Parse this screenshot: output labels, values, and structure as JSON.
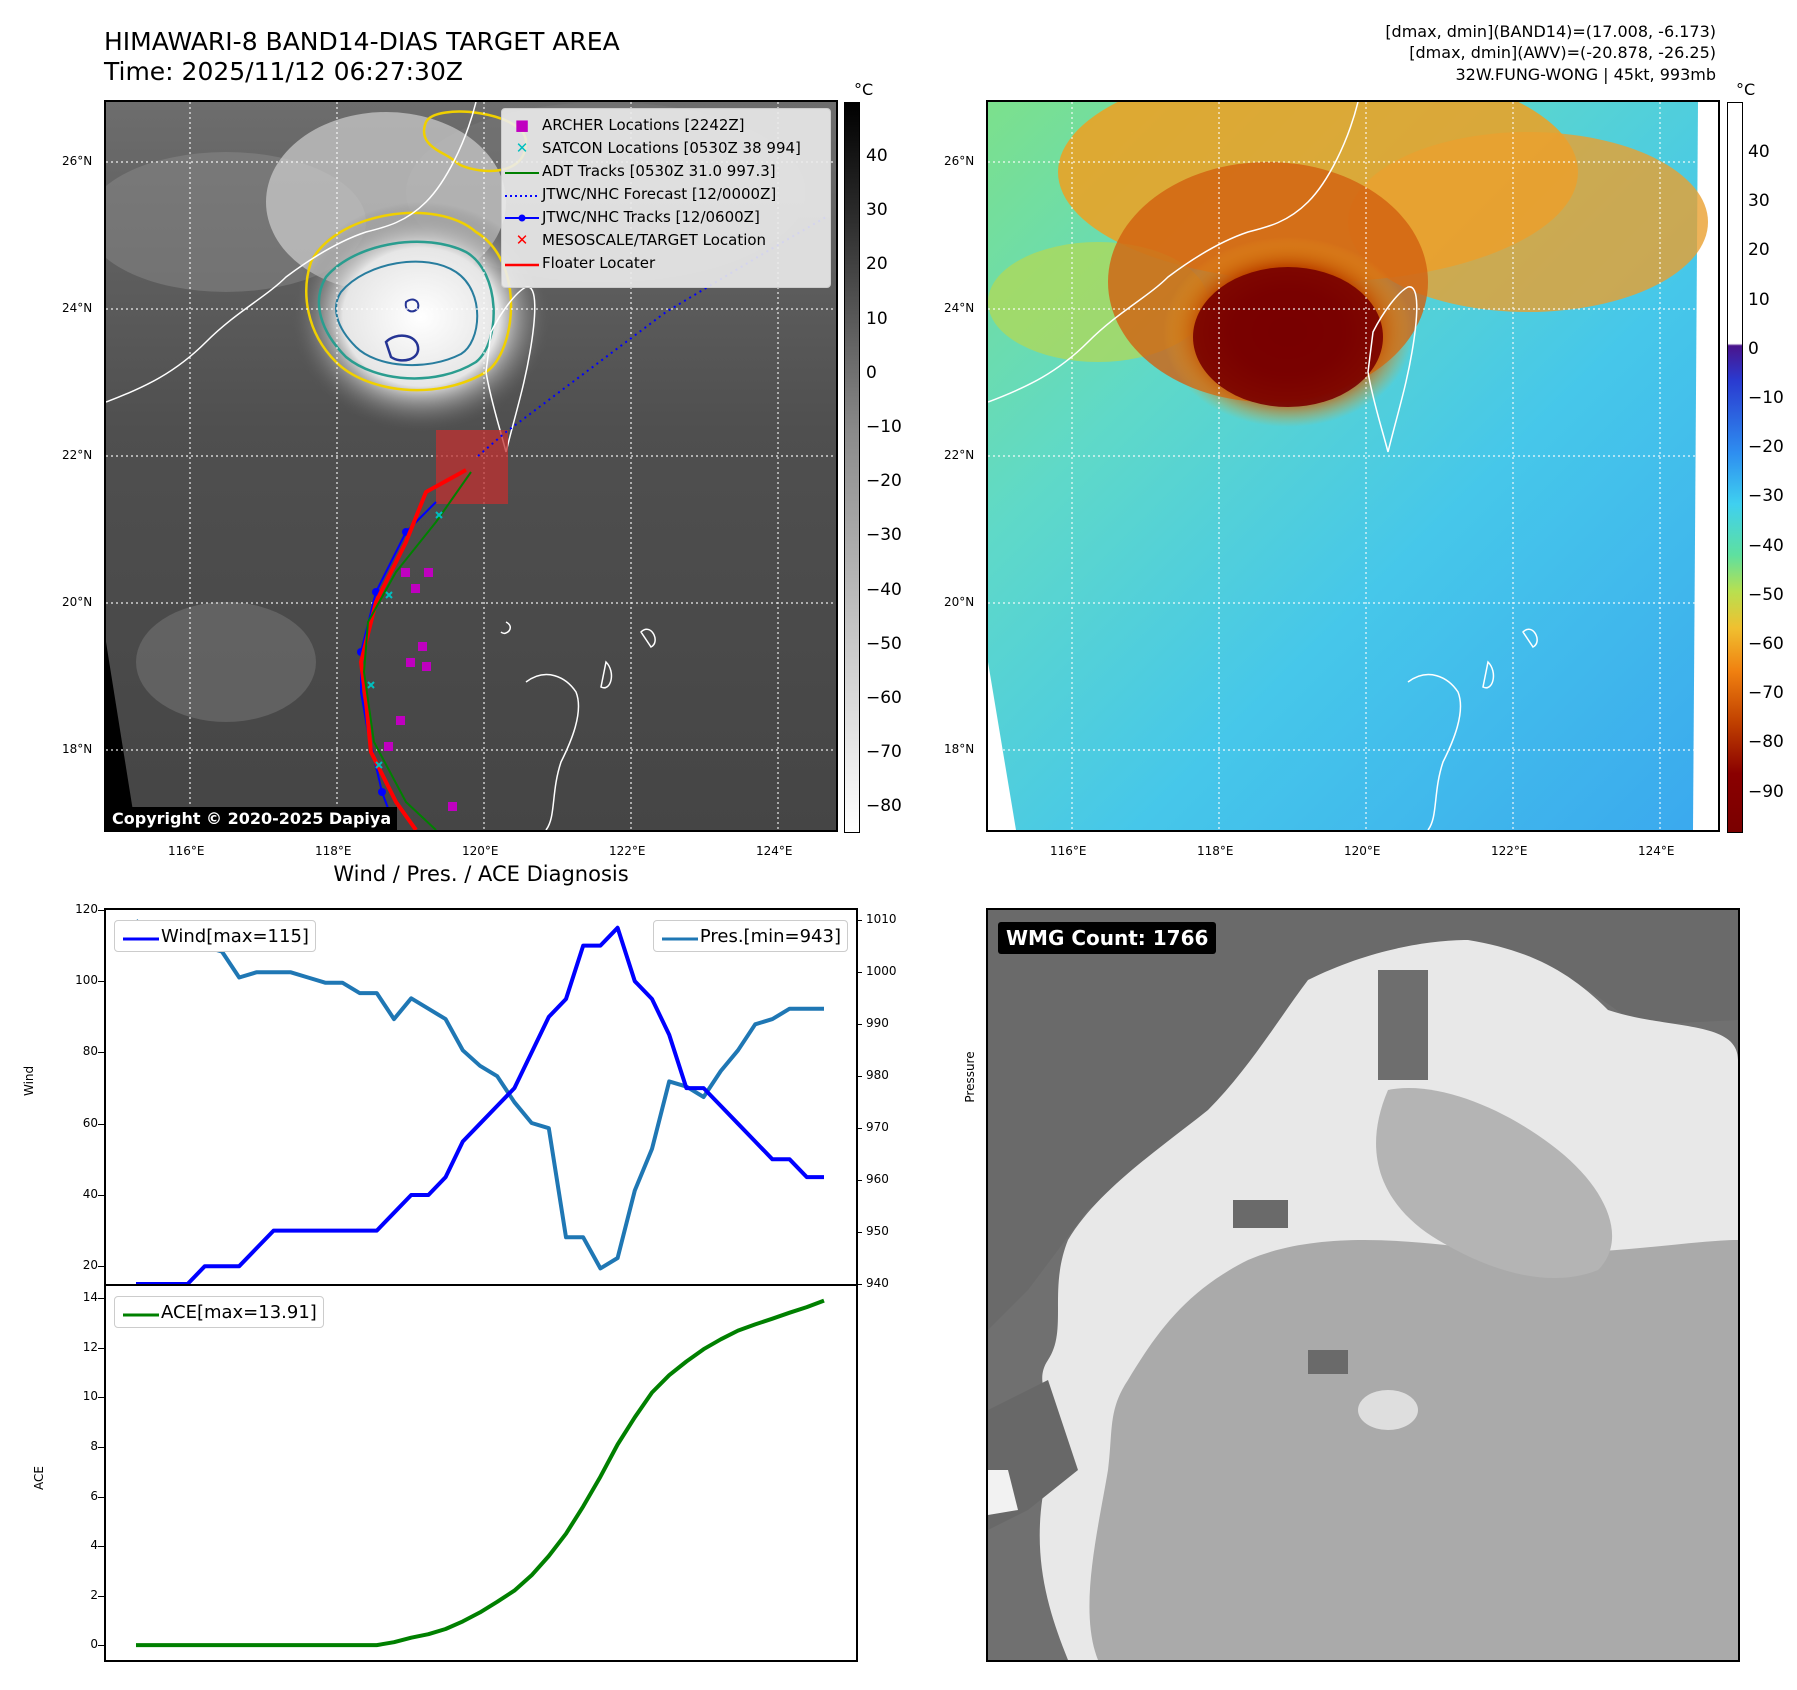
{
  "header": {
    "title_line1": "HIMAWARI-8 BAND14-DIAS TARGET AREA",
    "title_line2": "Time: 2025/11/12 06:27:30Z",
    "info_line1": "[dmax, dmin](BAND14)=(17.008, -6.173)",
    "info_line2": "[dmax, dmin](AWV)=(-20.878, -26.25)",
    "info_line3": "32W.FUNG-WONG | 45kt, 993mb"
  },
  "map_left": {
    "lat_labels": [
      "26°N",
      "24°N",
      "22°N",
      "20°N",
      "18°N"
    ],
    "lon_labels": [
      "116°E",
      "118°E",
      "120°E",
      "122°E",
      "124°E"
    ],
    "colorbar_unit": "°C",
    "colorbar_ticks": [
      "40",
      "30",
      "20",
      "10",
      "0",
      "−10",
      "−20",
      "−30",
      "−40",
      "−50",
      "−60",
      "−70",
      "−80"
    ],
    "copyright": "Copyright © 2020-2025 Dapiya",
    "legend": [
      {
        "label": "ARCHER Locations [2242Z]",
        "color": "#c000c0",
        "symbol": "square"
      },
      {
        "label": "SATCON Locations [0530Z 38 994]",
        "color": "#00bfbf",
        "symbol": "x"
      },
      {
        "label": "ADT Tracks [0530Z 31.0 997.3]",
        "color": "#008000",
        "symbol": "line"
      },
      {
        "label": "JTWC/NHC Forecast [12/0000Z]",
        "color": "#0000ff",
        "symbol": "dotted"
      },
      {
        "label": "JTWC/NHC Tracks [12/0600Z]",
        "color": "#0000ff",
        "symbol": "line-dot"
      },
      {
        "label": "MESOSCALE/TARGET Location",
        "color": "#ff0000",
        "symbol": "x"
      },
      {
        "label": "Floater Locater",
        "color": "#ff0000",
        "symbol": "line"
      }
    ]
  },
  "map_right": {
    "lat_labels": [
      "26°N",
      "24°N",
      "22°N",
      "20°N",
      "18°N"
    ],
    "lon_labels": [
      "116°E",
      "118°E",
      "120°E",
      "122°E",
      "124°E"
    ],
    "colorbar_unit": "°C",
    "colorbar_ticks": [
      "40",
      "30",
      "20",
      "10",
      "0",
      "−10",
      "−20",
      "−30",
      "−40",
      "−50",
      "−60",
      "−70",
      "−80",
      "−90"
    ]
  },
  "wmg": {
    "label": "WMG Count: 1766"
  },
  "chart_data": [
    {
      "type": "line",
      "title": "Wind / Pres. / ACE Diagnosis",
      "x": [
        0,
        1,
        2,
        3,
        4,
        5,
        6,
        7,
        8,
        9,
        10,
        11,
        12,
        13,
        14,
        15,
        16,
        17,
        18,
        19,
        20,
        21,
        22,
        23,
        24,
        25,
        26,
        27,
        28,
        29,
        30,
        31,
        32,
        33,
        34,
        35,
        36,
        37,
        38,
        39,
        40
      ],
      "series": [
        {
          "name": "Wind[max=115]",
          "axis": "left",
          "color": "#0000ff",
          "values": [
            15,
            15,
            15,
            15,
            20,
            20,
            20,
            25,
            30,
            30,
            30,
            30,
            30,
            30,
            30,
            35,
            40,
            40,
            45,
            55,
            60,
            65,
            70,
            80,
            90,
            95,
            110,
            110,
            115,
            100,
            95,
            85,
            70,
            70,
            65,
            60,
            55,
            50,
            50,
            45,
            45
          ]
        },
        {
          "name": "Pres.[min=943]",
          "axis": "right",
          "color": "#1f77b4",
          "values": [
            1010,
            1006,
            1006,
            1006,
            1005,
            1004,
            999,
            1000,
            1000,
            1000,
            999,
            998,
            998,
            996,
            996,
            991,
            995,
            993,
            991,
            985,
            982,
            980,
            975,
            971,
            970,
            949,
            949,
            943,
            945,
            958,
            966,
            979,
            978,
            976,
            981,
            985,
            990,
            991,
            993,
            993,
            993
          ]
        }
      ],
      "ylabel": "Wind",
      "y2label": "Pressure",
      "ylim": [
        15,
        120
      ],
      "y2lim": [
        940,
        1012
      ],
      "yticks": [
        "120",
        "100",
        "80",
        "60",
        "40",
        "20"
      ],
      "y2ticks": [
        "1010",
        "1000",
        "990",
        "980",
        "970",
        "960",
        "950",
        "940"
      ]
    },
    {
      "type": "line",
      "x": [
        0,
        1,
        2,
        3,
        4,
        5,
        6,
        7,
        8,
        9,
        10,
        11,
        12,
        13,
        14,
        15,
        16,
        17,
        18,
        19,
        20,
        21,
        22,
        23,
        24,
        25,
        26,
        27,
        28,
        29,
        30,
        31,
        32,
        33,
        34,
        35,
        36,
        37,
        38,
        39,
        40
      ],
      "series": [
        {
          "name": "ACE[max=13.91]",
          "color": "#008000",
          "values": [
            0,
            0,
            0,
            0,
            0,
            0,
            0,
            0,
            0,
            0,
            0,
            0,
            0,
            0,
            0,
            0.12,
            0.3,
            0.44,
            0.65,
            0.96,
            1.32,
            1.75,
            2.2,
            2.82,
            3.6,
            4.5,
            5.6,
            6.8,
            8.1,
            9.2,
            10.2,
            10.9,
            11.45,
            11.95,
            12.35,
            12.7,
            12.95,
            13.18,
            13.42,
            13.65,
            13.91
          ]
        }
      ],
      "ylabel": "ACE",
      "ylim": [
        -0.6,
        14.5
      ],
      "yticks": [
        "14",
        "12",
        "10",
        "8",
        "6",
        "4",
        "2",
        "0"
      ]
    }
  ]
}
